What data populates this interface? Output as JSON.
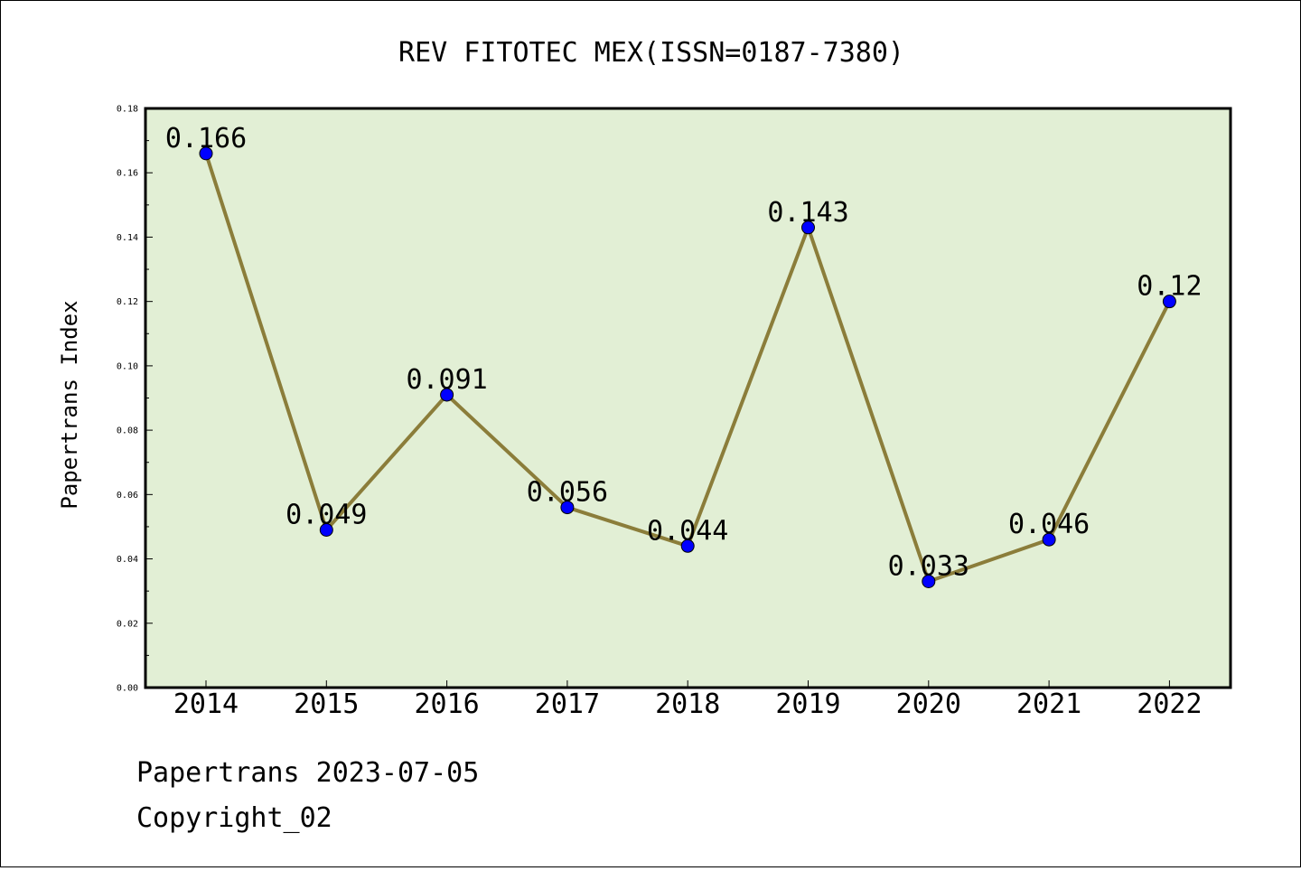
{
  "chart_data": {
    "type": "line",
    "title": "REV FITOTEC MEX(ISSN=0187-7380)",
    "xlabel": "",
    "ylabel": "Papertrans Index",
    "categories": [
      "2014",
      "2015",
      "2016",
      "2017",
      "2018",
      "2019",
      "2020",
      "2021",
      "2022"
    ],
    "series": [
      {
        "values": [
          0.166,
          0.049,
          0.091,
          0.056,
          0.044,
          0.143,
          0.033,
          0.046,
          0.12
        ],
        "labels": [
          "0.166",
          "0.049",
          "0.091",
          "0.056",
          "0.044",
          "0.143",
          "0.033",
          "0.046",
          "0.12"
        ]
      }
    ],
    "ylim": [
      0,
      0.18
    ],
    "yticks": [
      "0.00",
      "0.02",
      "0.04",
      "0.06",
      "0.08",
      "0.10",
      "0.12",
      "0.14",
      "0.16",
      "0.18"
    ],
    "grid": false,
    "colors": {
      "line": "#8b7d3a",
      "marker": "#0000ff",
      "plot_bg": "#e2efd5"
    }
  },
  "footer": {
    "date_line": "Papertrans 2023-07-05",
    "copyright": "Copyright_02"
  }
}
